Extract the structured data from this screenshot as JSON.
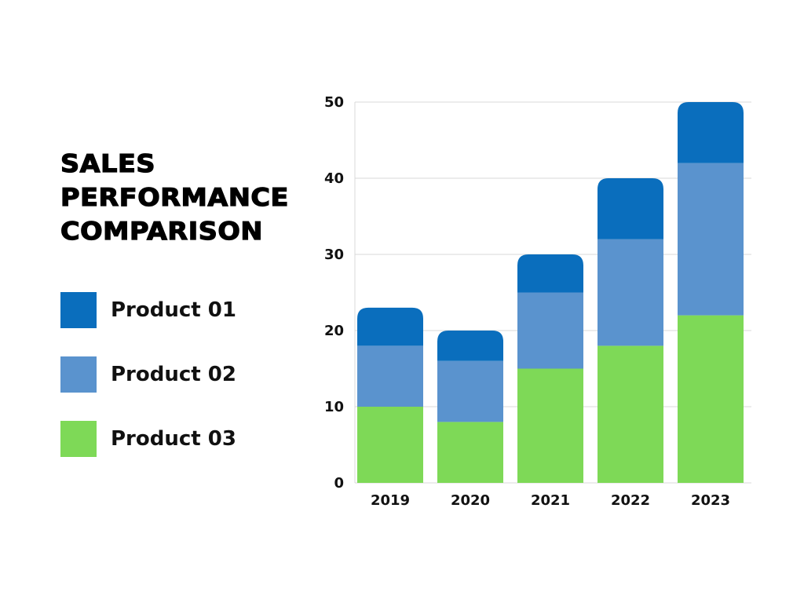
{
  "chart_data": {
    "type": "bar",
    "stacked": true,
    "title": "SALES PERFORMANCE COMPARISON",
    "title_lines": [
      "SALES",
      "PERFORMANCE",
      "COMPARISON"
    ],
    "xlabel": "",
    "ylabel": "",
    "categories": [
      "2019",
      "2020",
      "2021",
      "2022",
      "2023"
    ],
    "ylim": [
      0,
      50
    ],
    "yticks": [
      "0",
      "10",
      "20",
      "30",
      "40",
      "50"
    ],
    "grid": true,
    "legend_placement": "left",
    "series": [
      {
        "name": "Product 01",
        "color": "#0A6EBD",
        "values": [
          5,
          4,
          5,
          8,
          8
        ]
      },
      {
        "name": "Product 02",
        "color": "#5A93CE",
        "values": [
          8,
          8,
          10,
          14,
          20
        ]
      },
      {
        "name": "Product 03",
        "color": "#7ED957",
        "values": [
          10,
          8,
          15,
          18,
          22
        ]
      }
    ]
  }
}
